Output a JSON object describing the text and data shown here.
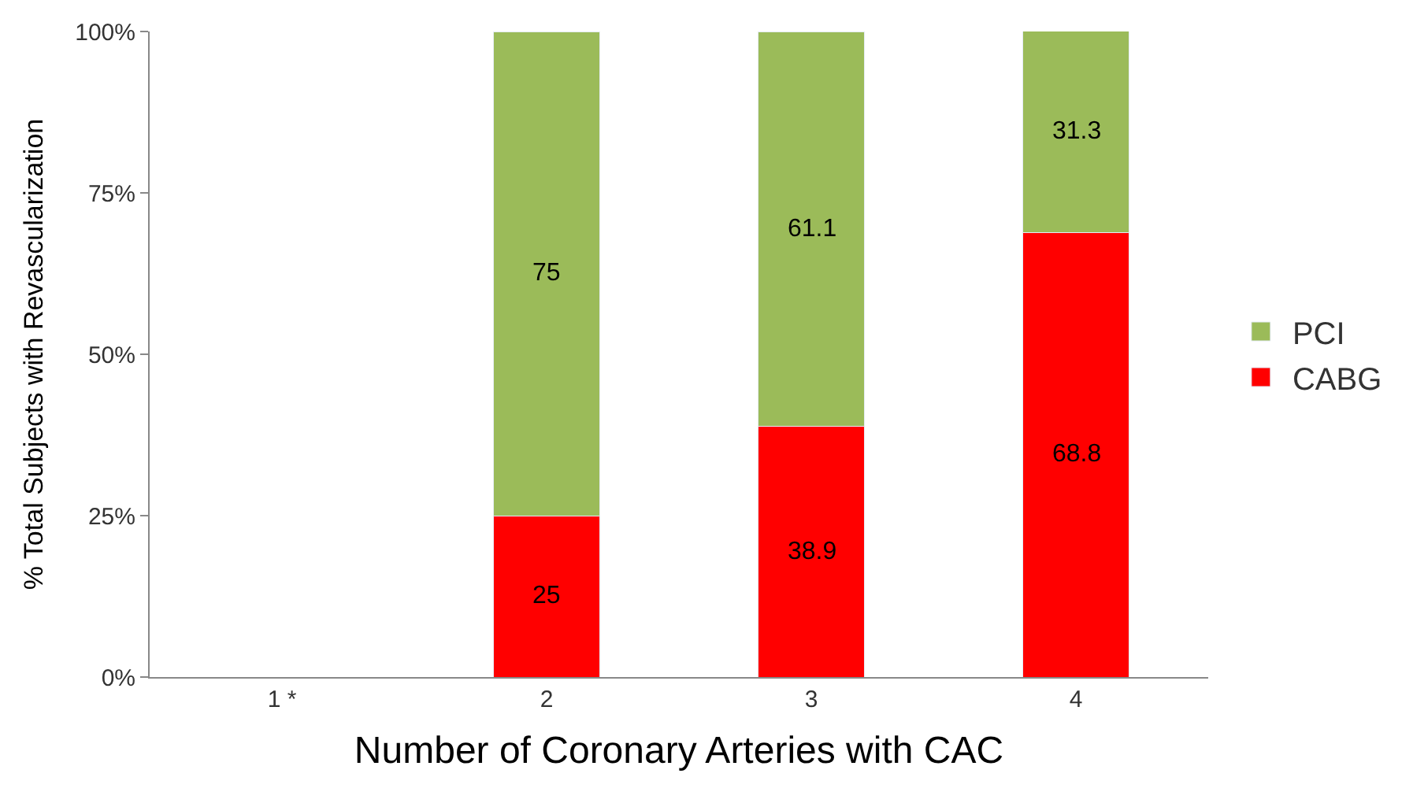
{
  "chart_data": {
    "type": "bar",
    "stacked": true,
    "xlabel": "Number of Coronary Arteries with CAC",
    "ylabel": "% Total Subjects with Revascularization",
    "categories": [
      "1 *",
      "2",
      "3",
      "4"
    ],
    "series": [
      {
        "name": "CABG",
        "color": "#ff0000",
        "values": [
          null,
          25,
          38.9,
          68.8
        ]
      },
      {
        "name": "PCI",
        "color": "#9bbb59",
        "values": [
          null,
          75,
          61.1,
          31.3
        ]
      }
    ],
    "ylim": [
      0,
      100
    ],
    "yticks": [
      {
        "value": 0,
        "label": "0%"
      },
      {
        "value": 25,
        "label": "25%"
      },
      {
        "value": 50,
        "label": "50%"
      },
      {
        "value": 75,
        "label": "75%"
      },
      {
        "value": 100,
        "label": "100%"
      }
    ],
    "data_labels": true,
    "legend": "right"
  }
}
